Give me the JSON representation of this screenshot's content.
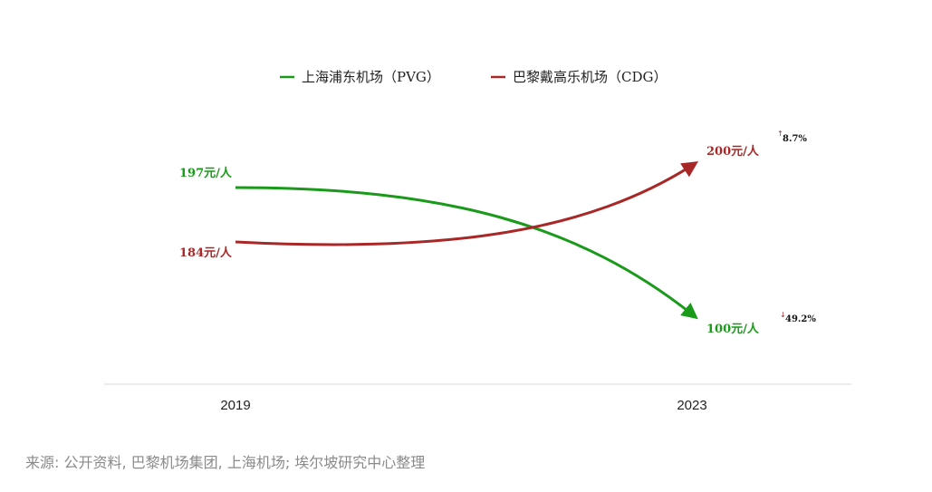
{
  "chart_data": {
    "type": "line",
    "x": [
      "2019",
      "2023"
    ],
    "ylim": [
      90,
      210
    ],
    "series": [
      {
        "name": "上海浦东机场（PVG）",
        "color": "#1a9a1a",
        "values": [
          197,
          100
        ],
        "start_label": "197元/人",
        "end_label": "100元/人",
        "change_arrow": "↓",
        "change_label": "49.2%"
      },
      {
        "name": "巴黎戴高乐机场（CDG）",
        "color": "#a82828",
        "values": [
          184,
          200
        ],
        "start_label": "184元/人",
        "end_label": "200元/人",
        "change_arrow": "↑",
        "change_label": "8.7%"
      }
    ],
    "legend_position": "top-center",
    "grid": false
  },
  "source": "来源: 公开资料, 巴黎机场集团, 上海机场; 埃尔坡研究中心整理"
}
